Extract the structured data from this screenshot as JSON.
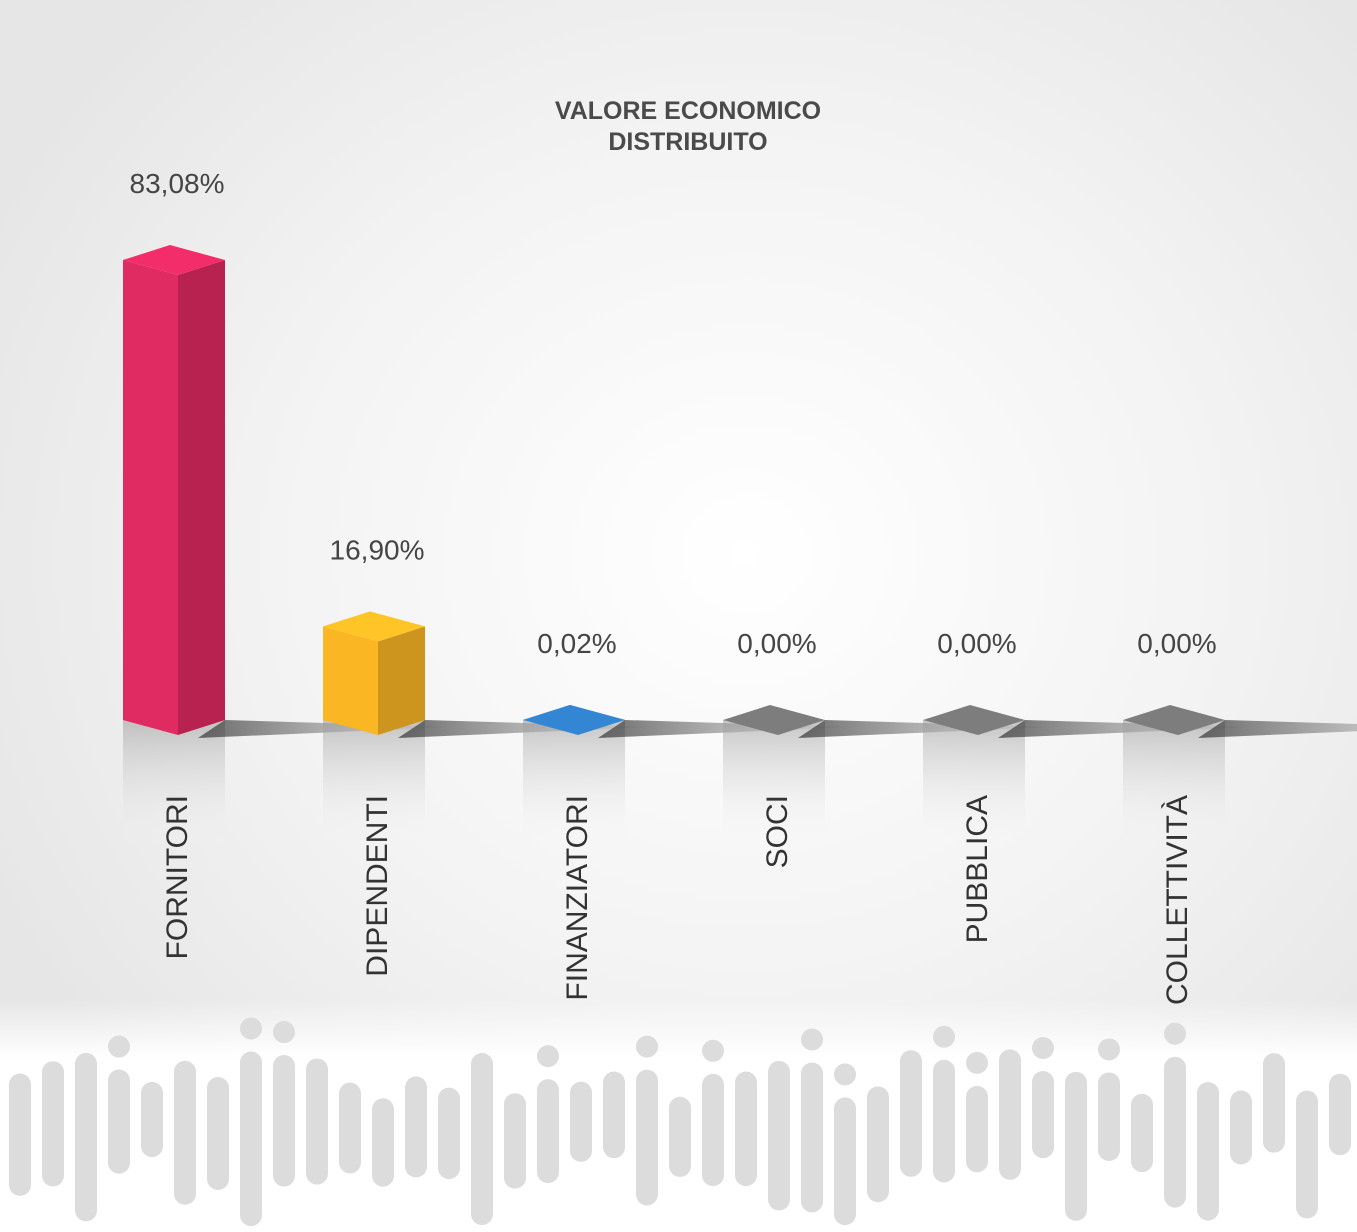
{
  "chart_data": {
    "type": "bar3d",
    "title": "VALORE ECONOMICO DISTRIBUITO",
    "categories": [
      "FORNITORI",
      "DIPENDENTI",
      "FINANZIATORI",
      "SOCI",
      "PUBBLICA",
      "COLLETTIVITÀ"
    ],
    "values": [
      83.08,
      16.9,
      0.02,
      0,
      0,
      0
    ],
    "value_labels": [
      "83,08%",
      "16,90%",
      "0,02%",
      "0,00%",
      "0,00%",
      "0,00%"
    ],
    "colors": [
      "#e02a62",
      "#fbb624",
      "#2f7cc4",
      "#7d7d7d",
      "#7d7d7d",
      "#7d7d7d"
    ]
  }
}
